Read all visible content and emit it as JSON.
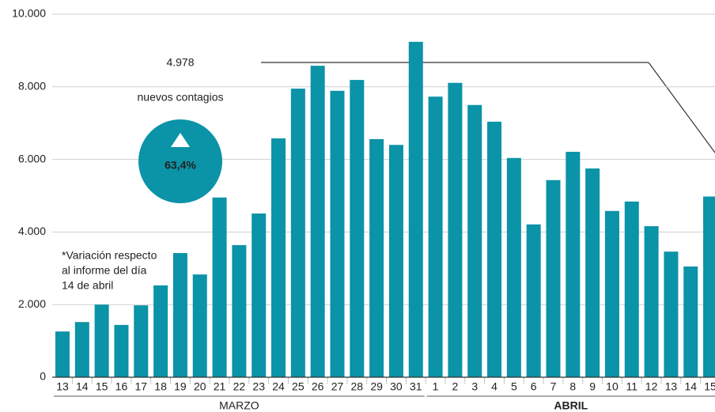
{
  "chart_data": {
    "type": "bar",
    "color": "#0b93a7",
    "grid": true,
    "ylim": [
      0,
      10000
    ],
    "yticks": [
      0,
      {
        "value": 2000,
        "label": "2.000"
      },
      {
        "value": 4000,
        "label": "4.000"
      },
      {
        "value": 6000,
        "label": "6.000"
      },
      {
        "value": 8000,
        "label": "8.000"
      },
      {
        "value": 10000,
        "label": "10.000"
      }
    ],
    "groups": [
      {
        "name": "MARZO",
        "categories": [
          "13",
          "14",
          "15",
          "16",
          "17",
          "18",
          "19",
          "20",
          "21",
          "22",
          "23",
          "24",
          "25",
          "26",
          "27",
          "28",
          "29",
          "30",
          "31"
        ],
        "values": [
          1260,
          1520,
          2000,
          1440,
          1980,
          2530,
          3420,
          2830,
          4950,
          3640,
          4510,
          6580,
          7950,
          8580,
          7890,
          8190,
          6560,
          6400,
          9240
        ]
      },
      {
        "name": "ABRIL",
        "categories": [
          "1",
          "2",
          "3",
          "4",
          "5",
          "6",
          "7",
          "8",
          "9",
          "10",
          "11",
          "12",
          "13",
          "14",
          "15"
        ],
        "values": [
          7730,
          8110,
          7500,
          7040,
          6040,
          4210,
          5430,
          6210,
          5750,
          4580,
          4840,
          4160,
          3460,
          3050,
          4978
        ]
      }
    ],
    "headline": {
      "value": "4.978",
      "label": "nuevos contagios",
      "change": "63,4%"
    },
    "note": [
      "*Variación respecto",
      "al informe del día",
      "14 de abril"
    ]
  }
}
